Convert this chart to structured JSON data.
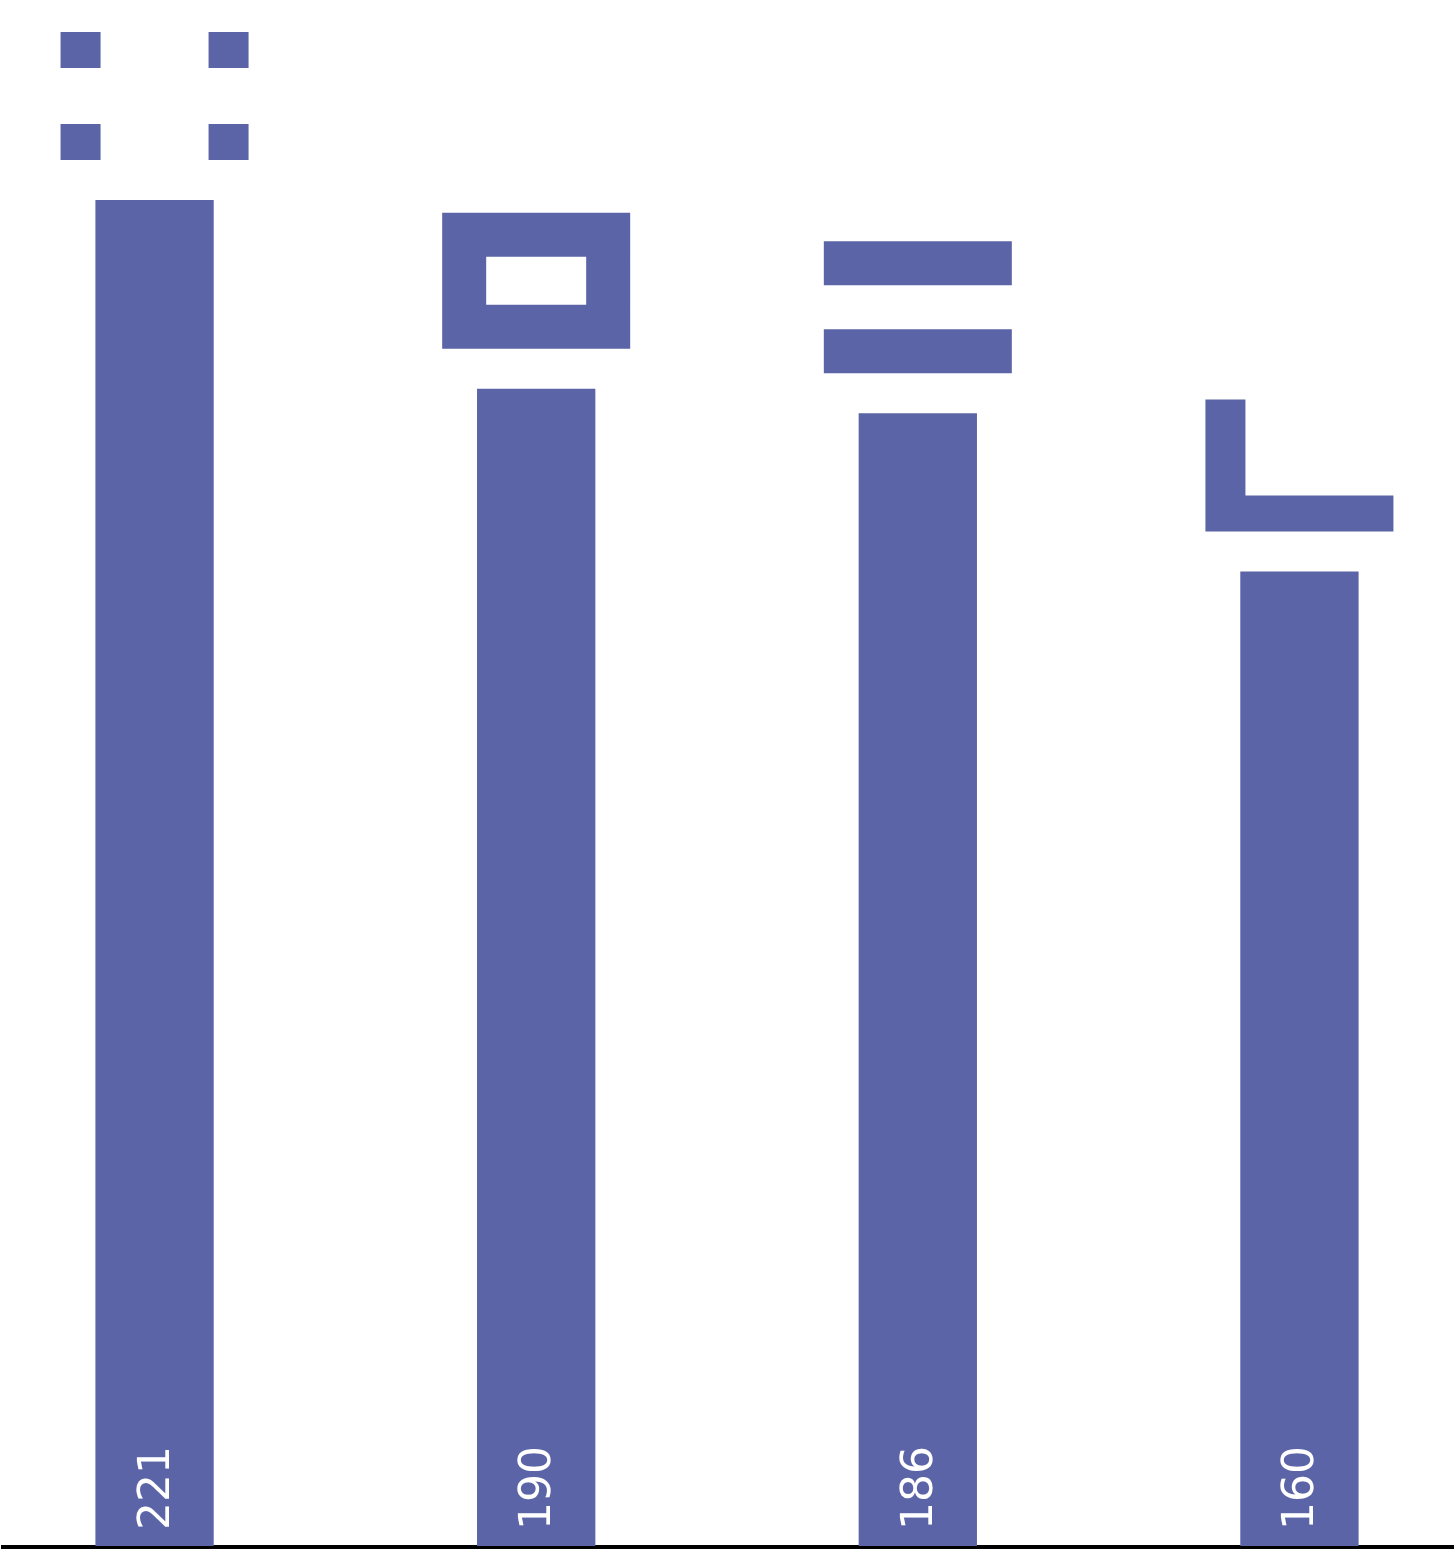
{
  "chart_data": {
    "type": "bar",
    "categories": [
      null,
      null,
      null,
      null
    ],
    "values": [
      221,
      190,
      186,
      160
    ],
    "color": "#5b64a6",
    "data_labels": true
  }
}
